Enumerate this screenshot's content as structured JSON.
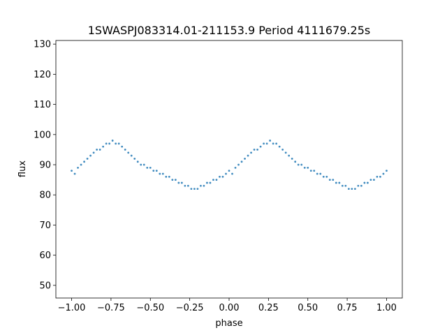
{
  "chart_data": {
    "type": "scatter",
    "title": "1SWASPJ083314.01-211153.9 Period 4111679.25s",
    "xlabel": "phase",
    "ylabel": "flux",
    "xlim": [
      -1.1,
      1.1
    ],
    "ylim": [
      45.8,
      131.2
    ],
    "x_ticks": [
      -1.0,
      -0.75,
      -0.5,
      -0.25,
      0.0,
      0.25,
      0.5,
      0.75,
      1.0
    ],
    "x_tick_labels": [
      "−1.00",
      "−0.75",
      "−0.50",
      "−0.25",
      "0.00",
      "0.25",
      "0.50",
      "0.75",
      "1.00"
    ],
    "y_ticks": [
      50,
      60,
      70,
      80,
      90,
      100,
      110,
      120,
      130
    ],
    "y_tick_labels": [
      "50",
      "60",
      "70",
      "80",
      "90",
      "100",
      "110",
      "120",
      "130"
    ],
    "marker_color": "#1f77b4",
    "grid": false,
    "legend": false,
    "series": [
      {
        "x": [
          -1.0,
          -0.98,
          -0.96,
          -0.94,
          -0.92,
          -0.9,
          -0.88,
          -0.86,
          -0.84,
          -0.82,
          -0.8,
          -0.78,
          -0.76,
          -0.74,
          -0.72,
          -0.7,
          -0.68,
          -0.66,
          -0.64,
          -0.62,
          -0.6,
          -0.58,
          -0.56,
          -0.54,
          -0.52,
          -0.5,
          -0.48,
          -0.46,
          -0.44,
          -0.42,
          -0.4,
          -0.38,
          -0.36,
          -0.34,
          -0.32,
          -0.3,
          -0.28,
          -0.26,
          -0.24,
          -0.22,
          -0.2,
          -0.18,
          -0.16,
          -0.14,
          -0.12,
          -0.1,
          -0.08,
          -0.06,
          -0.04,
          -0.02,
          0.0,
          0.02,
          0.04,
          0.06,
          0.08,
          0.1,
          0.12,
          0.14,
          0.16,
          0.18,
          0.2,
          0.22,
          0.24,
          0.26,
          0.28,
          0.3,
          0.32,
          0.34,
          0.36,
          0.38,
          0.4,
          0.42,
          0.44,
          0.46,
          0.48,
          0.5,
          0.52,
          0.54,
          0.56,
          0.58,
          0.6,
          0.62,
          0.64,
          0.66,
          0.68,
          0.7,
          0.72,
          0.74,
          0.76,
          0.78,
          0.8,
          0.82,
          0.84,
          0.86,
          0.88,
          0.9,
          0.92,
          0.94,
          0.96,
          0.98,
          1.0
        ],
        "y": [
          88,
          87,
          89,
          90,
          91,
          92,
          93,
          94,
          95,
          95,
          96,
          97,
          97,
          98,
          97,
          97,
          96,
          95,
          94,
          93,
          92,
          91,
          90,
          90,
          89,
          89,
          88,
          88,
          87,
          87,
          86,
          86,
          85,
          85,
          84,
          84,
          83,
          83,
          82,
          82,
          82,
          83,
          83,
          84,
          84,
          85,
          85,
          86,
          86,
          87,
          88,
          87,
          89,
          90,
          91,
          92,
          93,
          94,
          95,
          95,
          96,
          97,
          97,
          98,
          97,
          97,
          96,
          95,
          94,
          93,
          92,
          91,
          90,
          90,
          89,
          89,
          88,
          88,
          87,
          87,
          86,
          86,
          85,
          85,
          84,
          84,
          83,
          83,
          82,
          82,
          82,
          83,
          83,
          84,
          84,
          85,
          85,
          86,
          86,
          87,
          88
        ]
      }
    ]
  }
}
